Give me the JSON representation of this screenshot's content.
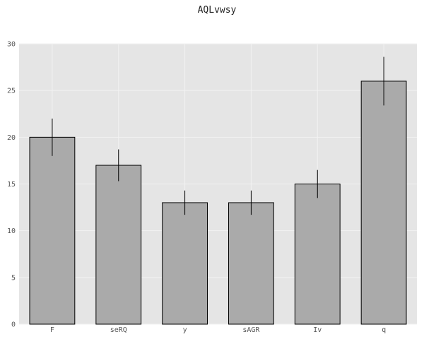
{
  "chart_data": {
    "type": "bar",
    "title": "AQLvwsy",
    "xlabel": "",
    "ylabel": "",
    "categories": [
      "F",
      "seRQ",
      "y",
      "sAGR",
      "Iv",
      "q"
    ],
    "values": [
      20,
      17,
      13,
      13,
      15,
      26
    ],
    "errors": [
      2.0,
      1.7,
      1.3,
      1.3,
      1.5,
      2.6
    ],
    "ylim": [
      0,
      30
    ],
    "yticks": [
      0,
      5,
      10,
      15,
      20,
      25,
      30
    ],
    "grid": true,
    "legend": "none",
    "colors": {
      "plot_background": "#e5e5e5",
      "bar_fill": "#aaaaaa",
      "bar_edge": "#000000",
      "grid": "#f2f2f2",
      "error_bar": "#000000"
    }
  }
}
